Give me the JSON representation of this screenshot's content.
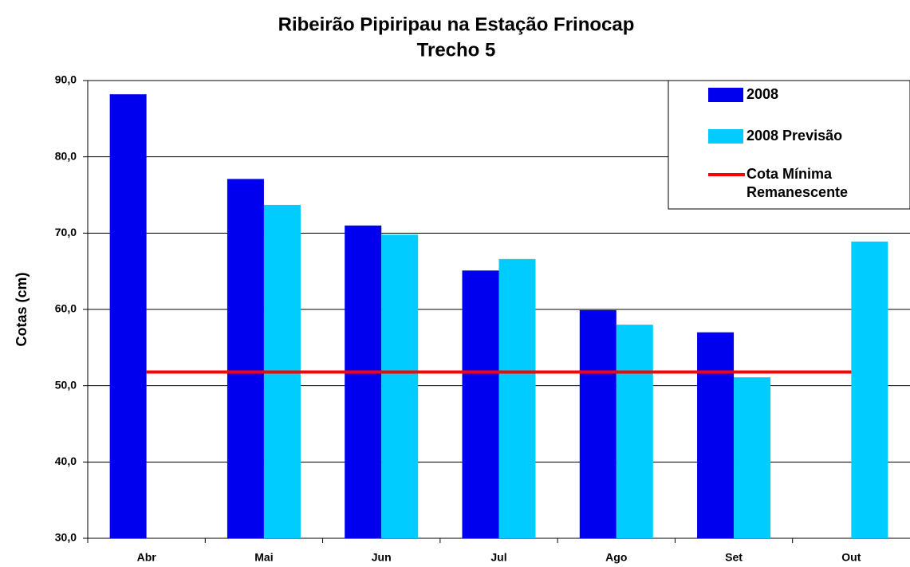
{
  "chart_data": {
    "type": "bar",
    "title": "Ribeirão Pipiripau na Estação Frinocap",
    "subtitle": "Trecho 5",
    "y_label": "Cotas (cm)",
    "categories": [
      "Abr",
      "Mai",
      "Jun",
      "Jul",
      "Ago",
      "Set",
      "Out"
    ],
    "series": [
      {
        "name": "2008",
        "type": "bar",
        "color": "#0000ee",
        "values": [
          88.2,
          77.1,
          71.0,
          65.1,
          59.9,
          57.0,
          null
        ]
      },
      {
        "name": "2008 Previsão",
        "type": "bar",
        "color": "#00ccff",
        "values": [
          null,
          73.7,
          69.8,
          66.6,
          58.0,
          51.1,
          68.9
        ]
      },
      {
        "name": "Cota Mínima Remanescente",
        "type": "line",
        "color": "#ff0000",
        "values": [
          51.8,
          51.8,
          51.8,
          51.8,
          51.8,
          51.8,
          51.8
        ]
      }
    ],
    "ylim": [
      30,
      90
    ],
    "yticks": [
      {
        "value": 30,
        "label": "30,0"
      },
      {
        "value": 40,
        "label": "40,0"
      },
      {
        "value": 50,
        "label": "50,0"
      },
      {
        "value": 60,
        "label": "60,0"
      },
      {
        "value": 70,
        "label": "70,0"
      },
      {
        "value": 80,
        "label": "80,0"
      },
      {
        "value": 90,
        "label": "90,0"
      }
    ],
    "grid": true,
    "legend": "top-right"
  }
}
